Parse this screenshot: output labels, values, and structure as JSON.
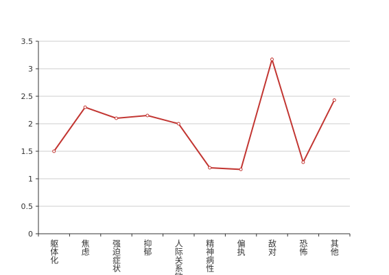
{
  "chart_data": {
    "type": "line",
    "categories": [
      "躯体化",
      "焦虑",
      "强迫症状",
      "抑郁",
      "人际关系敏感",
      "精神病性",
      "偏执",
      "敌对",
      "恐怖",
      "其他"
    ],
    "series": [
      {
        "color": "#c23531",
        "values": [
          1.5,
          2.3,
          2.1,
          2.15,
          2.0,
          1.2,
          1.17,
          3.17,
          1.3,
          2.43
        ]
      }
    ],
    "ylim": [
      0,
      3.5
    ],
    "yticks": [
      0,
      0.5,
      1,
      1.5,
      2,
      2.5,
      3,
      3.5
    ],
    "grid": true
  }
}
